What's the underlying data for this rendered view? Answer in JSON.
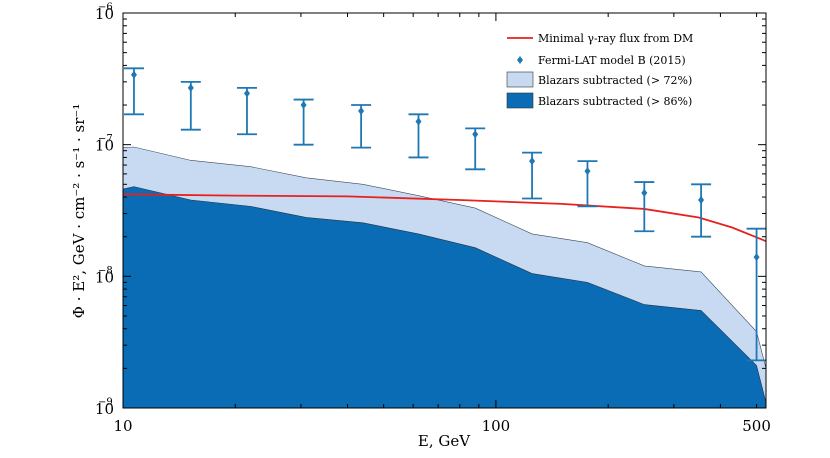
{
  "chart_data": {
    "type": "area",
    "title": "",
    "xlabel": "E, GeV",
    "ylabel": "Φ · E², GeV · cm⁻² · s⁻¹ · sr⁻¹",
    "xscale": "log",
    "yscale": "log",
    "xlim": [
      10,
      530
    ],
    "ylim": [
      1e-09,
      1e-06
    ],
    "grid": false,
    "legend_position": "top-right",
    "x_ticks": [
      {
        "value": 10,
        "label": "10"
      },
      {
        "value": 100,
        "label": "100"
      },
      {
        "value": 500,
        "label": "500"
      }
    ],
    "y_ticks": [
      {
        "value": 1e-09,
        "base": "10",
        "exp": "−9"
      },
      {
        "value": 1e-08,
        "base": "10",
        "exp": "−8"
      },
      {
        "value": 1e-07,
        "base": "10",
        "exp": "−7"
      },
      {
        "value": 1e-06,
        "base": "10",
        "exp": "−6"
      }
    ],
    "series": [
      {
        "name": "Blazars subtracted (> 72%)",
        "kind": "area",
        "color": "#c8daf2",
        "edge": "#3a4a5a",
        "points": [
          [
            10,
            9.5e-08
          ],
          [
            10.7,
            9.6e-08
          ],
          [
            15.2,
            7.6e-08
          ],
          [
            22,
            6.8e-08
          ],
          [
            31,
            5.6e-08
          ],
          [
            44,
            5e-08
          ],
          [
            62,
            4.1e-08
          ],
          [
            88,
            3.3e-08
          ],
          [
            125,
            2.1e-08
          ],
          [
            176,
            1.8e-08
          ],
          [
            250,
            1.2e-08
          ],
          [
            355,
            1.08e-08
          ],
          [
            500,
            3.8e-09
          ],
          [
            530,
            2e-09
          ]
        ]
      },
      {
        "name": "Blazars subtracted (> 86%)",
        "kind": "area",
        "color": "#0a6cb5",
        "edge": "#223344",
        "points": [
          [
            10,
            4.6e-08
          ],
          [
            10.7,
            4.8e-08
          ],
          [
            15.2,
            3.8e-08
          ],
          [
            22,
            3.4e-08
          ],
          [
            31,
            2.8e-08
          ],
          [
            44,
            2.55e-08
          ],
          [
            62,
            2.1e-08
          ],
          [
            88,
            1.65e-08
          ],
          [
            125,
            1.05e-08
          ],
          [
            176,
            9e-09
          ],
          [
            250,
            6.1e-09
          ],
          [
            355,
            5.5e-09
          ],
          [
            500,
            2.1e-09
          ],
          [
            530,
            1.1e-09
          ]
        ]
      },
      {
        "name": "Minimal γ-ray flux from DM",
        "kind": "line",
        "color": "#e8201e",
        "points": [
          [
            10,
            4.2e-08
          ],
          [
            20,
            4.1e-08
          ],
          [
            40,
            4.05e-08
          ],
          [
            80,
            3.8e-08
          ],
          [
            150,
            3.55e-08
          ],
          [
            250,
            3.25e-08
          ],
          [
            350,
            2.8e-08
          ],
          [
            430,
            2.35e-08
          ],
          [
            530,
            1.85e-08
          ]
        ]
      },
      {
        "name": "Fermi-LAT model B (2015)",
        "kind": "errorbar",
        "color": "#1f77b4",
        "points": [
          {
            "x": 10.7,
            "y": 3.4e-07,
            "lo": 1.7e-07,
            "hi": 3.8e-07
          },
          {
            "x": 15.2,
            "y": 2.7e-07,
            "lo": 1.3e-07,
            "hi": 3e-07
          },
          {
            "x": 21.5,
            "y": 2.45e-07,
            "lo": 1.2e-07,
            "hi": 2.7e-07
          },
          {
            "x": 30.5,
            "y": 2e-07,
            "lo": 1e-07,
            "hi": 2.2e-07
          },
          {
            "x": 43.5,
            "y": 1.8e-07,
            "lo": 9.5e-08,
            "hi": 2e-07
          },
          {
            "x": 62,
            "y": 1.5e-07,
            "lo": 8e-08,
            "hi": 1.7e-07
          },
          {
            "x": 88,
            "y": 1.2e-07,
            "lo": 6.5e-08,
            "hi": 1.33e-07
          },
          {
            "x": 125,
            "y": 7.5e-08,
            "lo": 3.9e-08,
            "hi": 8.7e-08
          },
          {
            "x": 176,
            "y": 6.3e-08,
            "lo": 3.4e-08,
            "hi": 7.5e-08
          },
          {
            "x": 250,
            "y": 4.3e-08,
            "lo": 2.2e-08,
            "hi": 5.2e-08
          },
          {
            "x": 355,
            "y": 3.8e-08,
            "lo": 2e-08,
            "hi": 5e-08
          },
          {
            "x": 500,
            "y": 1.4e-08,
            "lo": 2.3e-09,
            "hi": 2.3e-08
          }
        ]
      }
    ],
    "legend": [
      {
        "label": "Minimal γ-ray flux from DM",
        "kind": "line",
        "color": "#e8201e"
      },
      {
        "label": "Fermi-LAT model B (2015)",
        "kind": "marker",
        "color": "#1f77b4"
      },
      {
        "label": "Blazars subtracted (> 72%)",
        "kind": "patch",
        "color": "#c8daf2"
      },
      {
        "label": "Blazars subtracted (> 86%)",
        "kind": "patch",
        "color": "#0a6cb5"
      }
    ]
  }
}
